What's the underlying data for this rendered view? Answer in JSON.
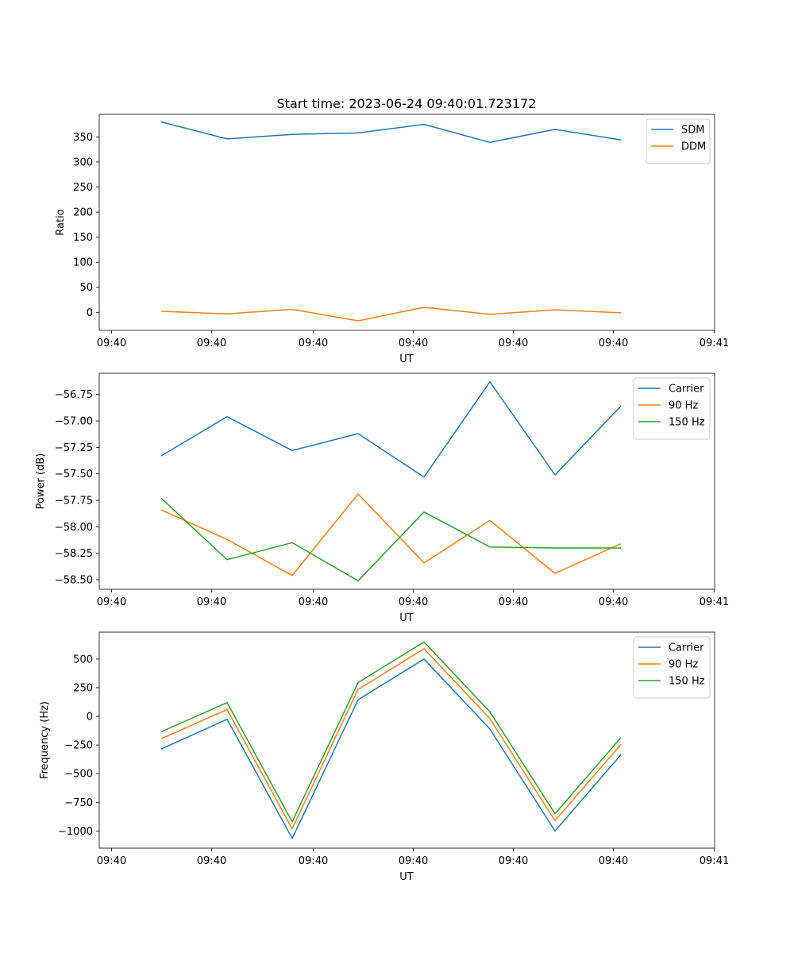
{
  "figure": {
    "title": "Start time: 2023-06-24 09:40:01.723172"
  },
  "chart_data": [
    {
      "type": "line",
      "xlabel": "UT",
      "ylabel": "Ratio",
      "x_tick_labels": [
        "09:40",
        "09:40",
        "09:40",
        "09:40",
        "09:40",
        "09:40",
        "09:40",
        "09:41"
      ],
      "y_ticks": [
        0,
        50,
        100,
        150,
        200,
        250,
        300,
        350
      ],
      "ylim": [
        -36,
        395
      ],
      "legend_position": "top-right",
      "grid": false,
      "series": [
        {
          "name": "SDM",
          "color": "#1f77b4",
          "values": [
            380,
            346,
            355,
            358,
            375,
            339,
            365,
            344
          ]
        },
        {
          "name": "DDM",
          "color": "#ff7f0e",
          "values": [
            2,
            -3,
            6,
            -17,
            10,
            -4,
            5,
            -1
          ]
        }
      ]
    },
    {
      "type": "line",
      "xlabel": "UT",
      "ylabel": "Power (dB)",
      "x_tick_labels": [
        "09:40",
        "09:40",
        "09:40",
        "09:40",
        "09:40",
        "09:40",
        "09:40",
        "09:41"
      ],
      "y_ticks": [
        -56.75,
        -57.0,
        -57.25,
        -57.5,
        -57.75,
        -58.0,
        -58.25,
        -58.5
      ],
      "y_tick_labels": [
        "−56.75",
        "−57.00",
        "−57.25",
        "−57.50",
        "−57.75",
        "−58.00",
        "−58.25",
        "−58.50"
      ],
      "ylim": [
        -58.59,
        -56.55
      ],
      "legend_position": "top-right",
      "grid": false,
      "series": [
        {
          "name": "Carrier",
          "color": "#1f77b4",
          "values": [
            -57.33,
            -56.96,
            -57.28,
            -57.12,
            -57.53,
            -56.63,
            -57.51,
            -56.86
          ]
        },
        {
          "name": "90 Hz",
          "color": "#ff7f0e",
          "values": [
            -57.84,
            -58.12,
            -58.46,
            -57.69,
            -58.34,
            -57.94,
            -58.44,
            -58.16
          ]
        },
        {
          "name": "150 Hz",
          "color": "#2ca02c",
          "values": [
            -57.73,
            -58.31,
            -58.15,
            -58.51,
            -57.86,
            -58.19,
            -58.2,
            -58.2
          ]
        }
      ]
    },
    {
      "type": "line",
      "xlabel": "UT",
      "ylabel": "Frequency (Hz)",
      "x_tick_labels": [
        "09:40",
        "09:40",
        "09:40",
        "09:40",
        "09:40",
        "09:40",
        "09:40",
        "09:41"
      ],
      "y_ticks": [
        500,
        250,
        0,
        -250,
        -500,
        -750,
        -1000
      ],
      "y_tick_labels": [
        "500",
        "250",
        "0",
        "−250",
        "−500",
        "−750",
        "−1000"
      ],
      "ylim": [
        -1150,
        735
      ],
      "legend_position": "top-right",
      "grid": false,
      "series": [
        {
          "name": "Carrier",
          "color": "#1f77b4",
          "values": [
            -285,
            -25,
            -1065,
            145,
            500,
            -110,
            -1000,
            -335
          ]
        },
        {
          "name": "90 Hz",
          "color": "#ff7f0e",
          "values": [
            -195,
            60,
            -980,
            235,
            590,
            -20,
            -910,
            -245
          ]
        },
        {
          "name": "150 Hz",
          "color": "#2ca02c",
          "values": [
            -135,
            120,
            -920,
            295,
            650,
            40,
            -850,
            -185
          ]
        }
      ]
    }
  ]
}
